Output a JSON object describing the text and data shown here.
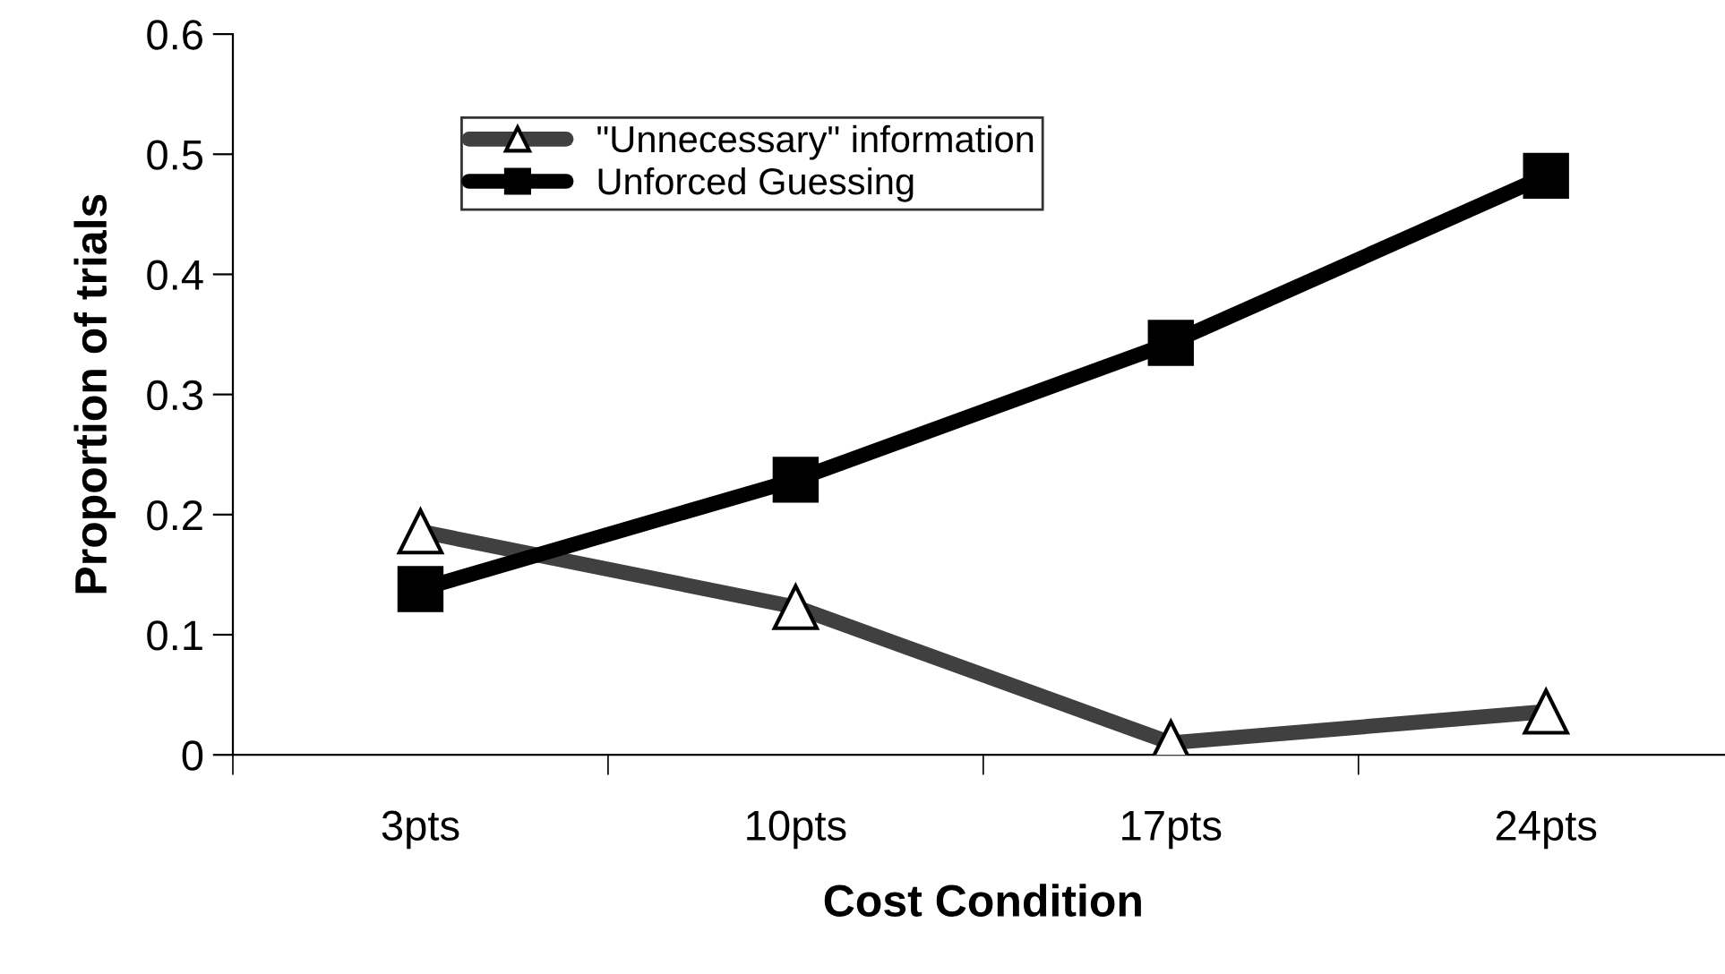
{
  "chart_data": {
    "type": "line",
    "xlabel": "Cost Condition",
    "ylabel": "Proportion of trials",
    "categories": [
      "3pts",
      "10pts",
      "17pts",
      "24pts"
    ],
    "series": [
      {
        "name": "\"Unnecessary\" information",
        "color": "#404040",
        "marker": "triangle",
        "values": [
          0.186,
          0.123,
          0.01,
          0.036
        ]
      },
      {
        "name": "Unforced Guessing",
        "color": "#000000",
        "marker": "square",
        "values": [
          0.138,
          0.229,
          0.343,
          0.482
        ]
      }
    ],
    "ylim": [
      0,
      0.6
    ],
    "yticks": [
      {
        "value": 0,
        "label": "0"
      },
      0.1,
      0.2,
      0.3,
      0.4,
      0.5,
      0.6
    ],
    "grid": false,
    "legend": "top",
    "line_style": "solid"
  }
}
